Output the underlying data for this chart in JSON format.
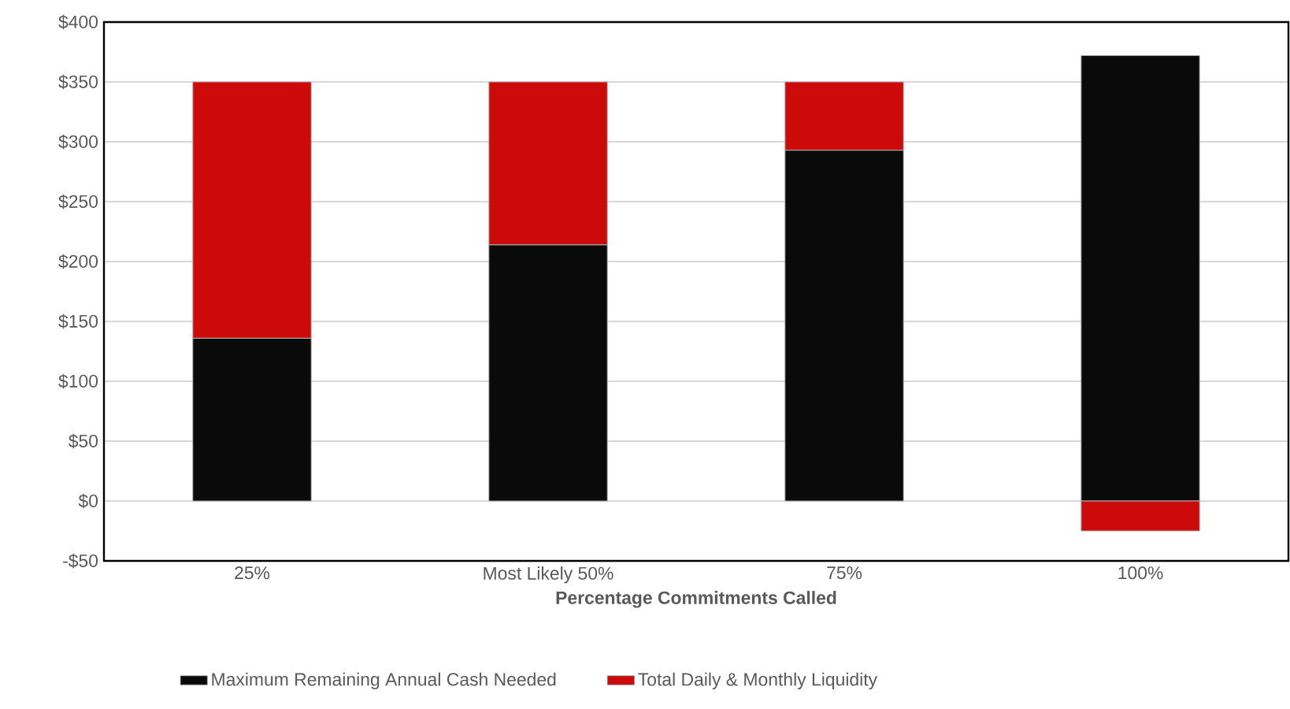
{
  "chart_data": {
    "type": "bar",
    "stacked": true,
    "categories": [
      "25%",
      "Most Likely 50%",
      "75%",
      "100%"
    ],
    "xlabel": "Percentage Commitments Called",
    "series": [
      {
        "name": "Maximum Remaining Annual Cash Needed",
        "color": "#0a0a0a",
        "values": [
          136,
          214,
          293,
          372
        ]
      },
      {
        "name": "Total Daily & Monthly Liquidity",
        "color": "#cc0a0a",
        "values": [
          214,
          136,
          57,
          -25
        ]
      }
    ],
    "ylim": [
      -50,
      400
    ],
    "yticks": [
      {
        "value": -50,
        "label": "-$50"
      },
      {
        "value": 0,
        "label": "$0"
      },
      {
        "value": 50,
        "label": "$50"
      },
      {
        "value": 100,
        "label": "$100"
      },
      {
        "value": 150,
        "label": "$150"
      },
      {
        "value": 200,
        "label": "$200"
      },
      {
        "value": 250,
        "label": "$250"
      },
      {
        "value": 300,
        "label": "$300"
      },
      {
        "value": 350,
        "label": "$350"
      },
      {
        "value": 400,
        "label": "$400"
      }
    ],
    "grid": "y",
    "legend": "bottom"
  }
}
